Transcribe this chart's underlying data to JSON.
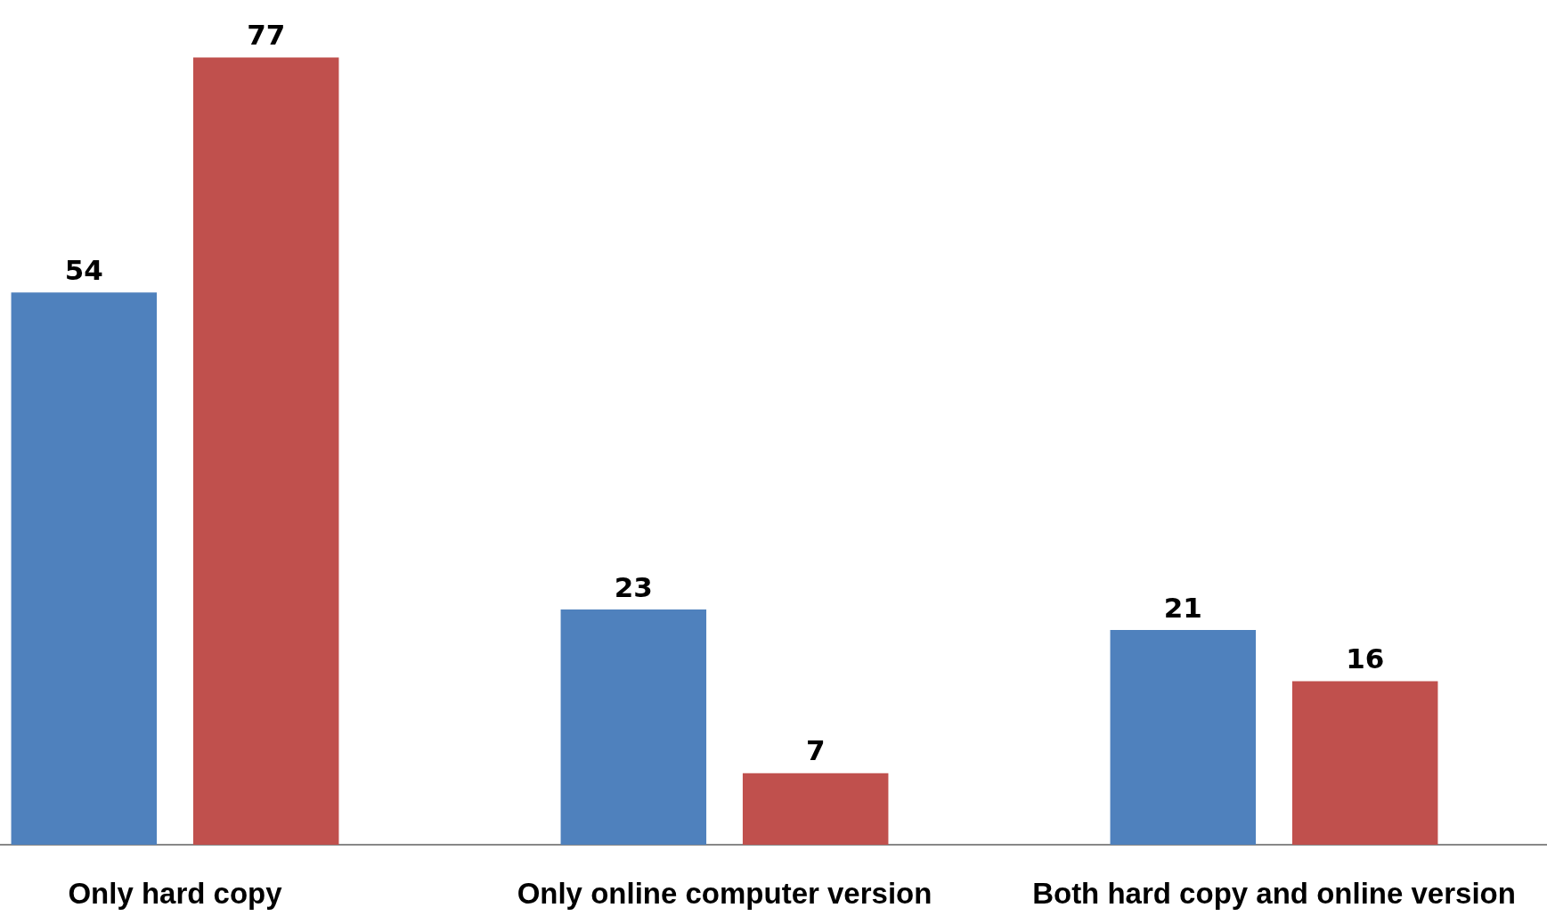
{
  "chart_data": {
    "type": "bar",
    "categories": [
      "Only hard copy",
      "Only online computer version",
      "Both hard copy and online version"
    ],
    "series": [
      {
        "color": "#4f81bd",
        "values": [
          54,
          23,
          21
        ]
      },
      {
        "color": "#c0504d",
        "values": [
          77,
          7,
          16
        ]
      }
    ],
    "data_labels": true
  }
}
